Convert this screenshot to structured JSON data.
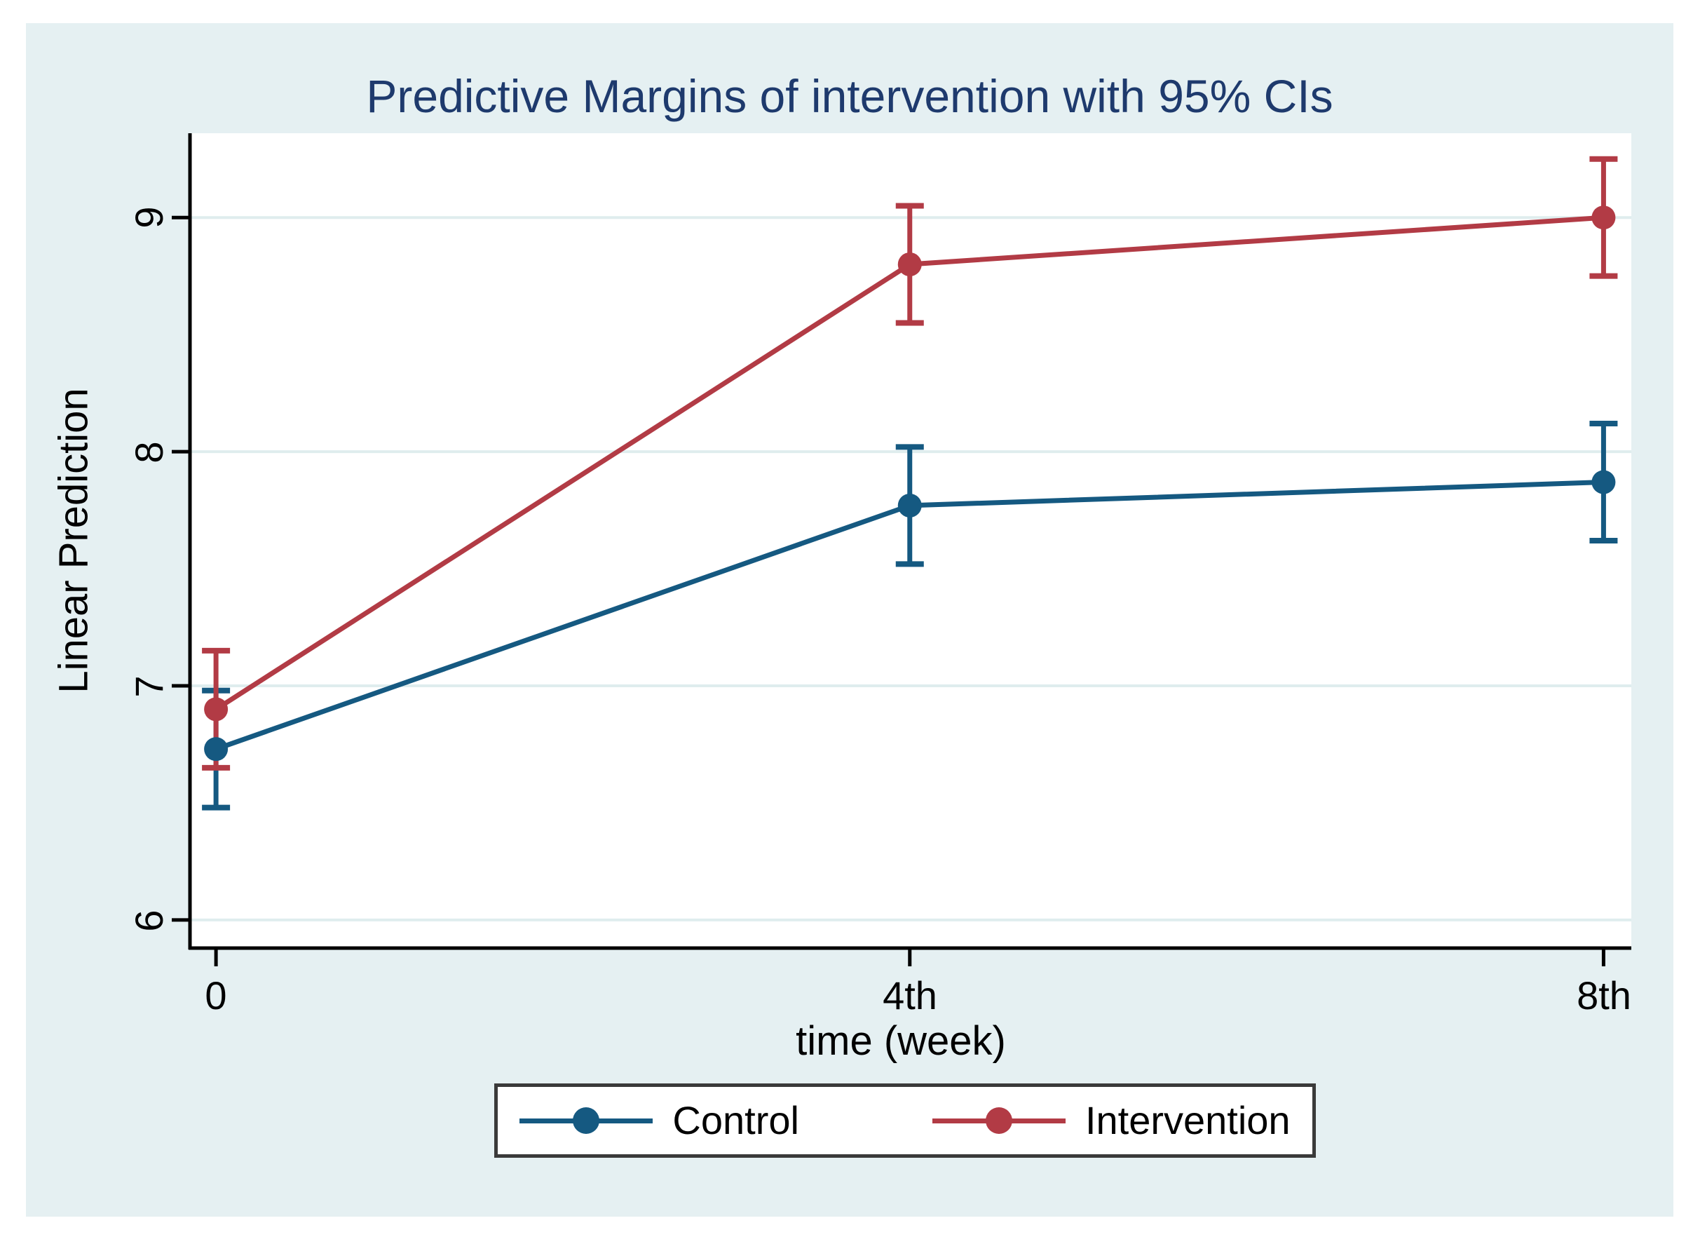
{
  "figure": {
    "background": "#e5f0f2",
    "title_color": "#1e3a6d",
    "axis_color": "#000000"
  },
  "chart_data": {
    "type": "line",
    "title": "Predictive Margins of intervention with 95% CIs",
    "xlabel": "time (week)",
    "ylabel": "Linear Prediction",
    "x": [
      0,
      4,
      8
    ],
    "x_tick_labels": [
      "0",
      "4th",
      "8th"
    ],
    "y_ticks": [
      9,
      8,
      7,
      6
    ],
    "y_tick_labels": [
      "9",
      "8",
      "7",
      "6"
    ],
    "xlim": [
      -0.15,
      8.16
    ],
    "ylim": [
      5.88,
      9.36
    ],
    "grid": true,
    "grid_color": "#dfedee",
    "legend_position": "bottom-center",
    "error_bars": "95% CI",
    "series": [
      {
        "name": "Control",
        "color": "#155981",
        "values": [
          6.73,
          7.77,
          7.87
        ],
        "ci_low": [
          6.48,
          7.52,
          7.62
        ],
        "ci_high": [
          6.98,
          8.02,
          8.12
        ]
      },
      {
        "name": "Intervention",
        "color": "#b23b45",
        "values": [
          6.9,
          8.8,
          9.0
        ],
        "ci_low": [
          6.65,
          8.55,
          8.75
        ],
        "ci_high": [
          7.15,
          9.05,
          9.25
        ]
      }
    ]
  }
}
